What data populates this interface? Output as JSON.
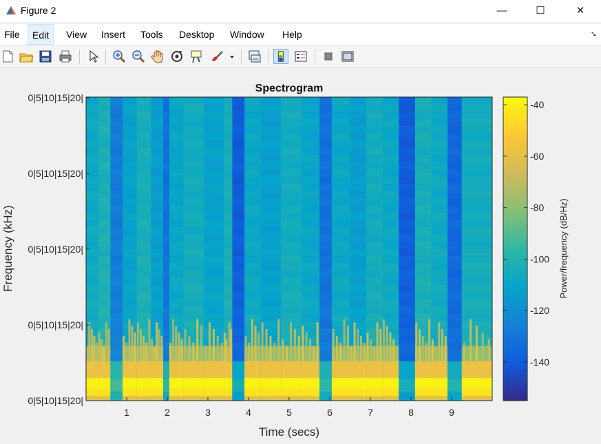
{
  "window": {
    "title": "Figure 2",
    "controls": [
      "—",
      "☐",
      "✕"
    ]
  },
  "menu": [
    "File",
    "Edit",
    "View",
    "Insert",
    "Tools",
    "Desktop",
    "Window",
    "Help"
  ],
  "toolbar": [
    "new-figure-icon",
    "open-icon",
    "save-icon",
    "print-icon",
    "pointer-icon",
    "zoom-in-icon",
    "zoom-out-icon",
    "pan-hand-icon",
    "rotate-3d-icon",
    "data-cursor-icon",
    "brush-icon",
    "dropdown-arrow-icon",
    "link-plot-icon",
    "colorbar-icon",
    "legend-icon",
    "hide-plot-tools-icon",
    "show-plot-tools-icon"
  ],
  "chart_data": {
    "type": "heatmap",
    "title": "Spectrogram",
    "xlabel": "Time (secs)",
    "ylabel": "Frequency (kHz)",
    "x_ticks": [
      "1",
      "2",
      "3",
      "4",
      "5",
      "6",
      "7",
      "8",
      "9"
    ],
    "x_range": [
      0,
      10
    ],
    "y_tick_labels": [
      "0|5|10|15|20|",
      "0|5|10|15|20|",
      "0|5|10|15|20|",
      "0|5|10|15|20|",
      "0|5|10|15|20|"
    ],
    "colorbar": {
      "label": "Power/frequency (dB/Hz)",
      "ticks": [
        -40,
        -60,
        -80,
        -100,
        -120,
        -140
      ],
      "range": [
        -155,
        -37
      ],
      "colormap": [
        "#352a87",
        "#0f5cdd",
        "#1481d6",
        "#06a4ca",
        "#2eb7a4",
        "#87bf77",
        "#d1bb59",
        "#fec832",
        "#f9fb0e"
      ]
    },
    "time_segments": [
      {
        "t0": 0.0,
        "t1": 0.3,
        "level": -108
      },
      {
        "t0": 0.3,
        "t1": 0.6,
        "level": -103
      },
      {
        "t0": 0.6,
        "t1": 0.9,
        "level": -128
      },
      {
        "t0": 0.9,
        "t1": 1.25,
        "level": -112
      },
      {
        "t0": 1.25,
        "t1": 1.6,
        "level": -104
      },
      {
        "t0": 1.6,
        "t1": 1.9,
        "level": -114
      },
      {
        "t0": 1.9,
        "t1": 2.05,
        "level": -132
      },
      {
        "t0": 2.05,
        "t1": 2.4,
        "level": -110
      },
      {
        "t0": 2.4,
        "t1": 2.9,
        "level": -106
      },
      {
        "t0": 2.9,
        "t1": 3.4,
        "level": -112
      },
      {
        "t0": 3.4,
        "t1": 3.6,
        "level": -104
      },
      {
        "t0": 3.6,
        "t1": 3.9,
        "level": -140
      },
      {
        "t0": 3.9,
        "t1": 4.3,
        "level": -109
      },
      {
        "t0": 4.3,
        "t1": 4.8,
        "level": -113
      },
      {
        "t0": 4.8,
        "t1": 5.3,
        "level": -106
      },
      {
        "t0": 5.3,
        "t1": 5.75,
        "level": -110
      },
      {
        "t0": 5.75,
        "t1": 6.05,
        "level": -132
      },
      {
        "t0": 6.05,
        "t1": 6.5,
        "level": -109
      },
      {
        "t0": 6.5,
        "t1": 6.9,
        "level": -114
      },
      {
        "t0": 6.9,
        "t1": 7.3,
        "level": -106
      },
      {
        "t0": 7.3,
        "t1": 7.7,
        "level": -109
      },
      {
        "t0": 7.7,
        "t1": 8.1,
        "level": -140
      },
      {
        "t0": 8.1,
        "t1": 8.5,
        "level": -104
      },
      {
        "t0": 8.5,
        "t1": 8.9,
        "level": -108
      },
      {
        "t0": 8.9,
        "t1": 9.25,
        "level": -136
      },
      {
        "t0": 9.25,
        "t1": 10.0,
        "level": -106
      }
    ]
  }
}
